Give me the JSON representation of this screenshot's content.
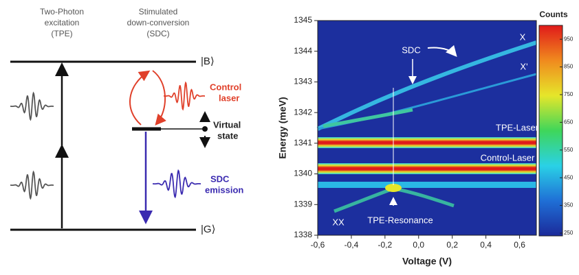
{
  "diagram": {
    "tpe_label": [
      "Two-Photon",
      "excitation",
      "(TPE)"
    ],
    "sdc_label": [
      "Stimulated",
      "down-conversion",
      "(SDC)"
    ],
    "state_b": "|B⟩",
    "state_g": "|G⟩",
    "control_laser": [
      "Control",
      "laser"
    ],
    "virtual_state": [
      "Virtual",
      "state"
    ],
    "sdc_emission": [
      "SDC",
      "emission"
    ]
  },
  "chart_data": {
    "type": "heatmap",
    "x_label": "Voltage (V)",
    "y_label": "Energy (meV)",
    "xlim": [
      -0.6,
      0.7
    ],
    "ylim": [
      1338,
      1345
    ],
    "xticks": [
      {
        "value": -0.6,
        "label": "-0,6"
      },
      {
        "value": -0.4,
        "label": "-0,4"
      },
      {
        "value": -0.2,
        "label": "-0,2"
      },
      {
        "value": 0,
        "label": "0,0"
      },
      {
        "value": 0.2,
        "label": "0,2"
      },
      {
        "value": 0.4,
        "label": "0,4"
      },
      {
        "value": 0.6,
        "label": "0,6"
      }
    ],
    "yticks": [
      1338,
      1339,
      1340,
      1341,
      1342,
      1343,
      1344,
      1345
    ],
    "colorbar": {
      "label": "Counts",
      "lim": [
        240,
        1000
      ],
      "ticks": [
        250,
        350,
        450,
        550,
        650,
        750,
        850,
        950
      ],
      "colors": [
        "#1b2a9a",
        "#1f6fd6",
        "#2ad1e6",
        "#3fd65a",
        "#e6e62a",
        "#f08a1e",
        "#e01a1a"
      ]
    },
    "annotations": [
      "SDC",
      "X",
      "X'",
      "TPE-Laser",
      "Control-Laser",
      "TPE-Resonance",
      "XX"
    ]
  }
}
